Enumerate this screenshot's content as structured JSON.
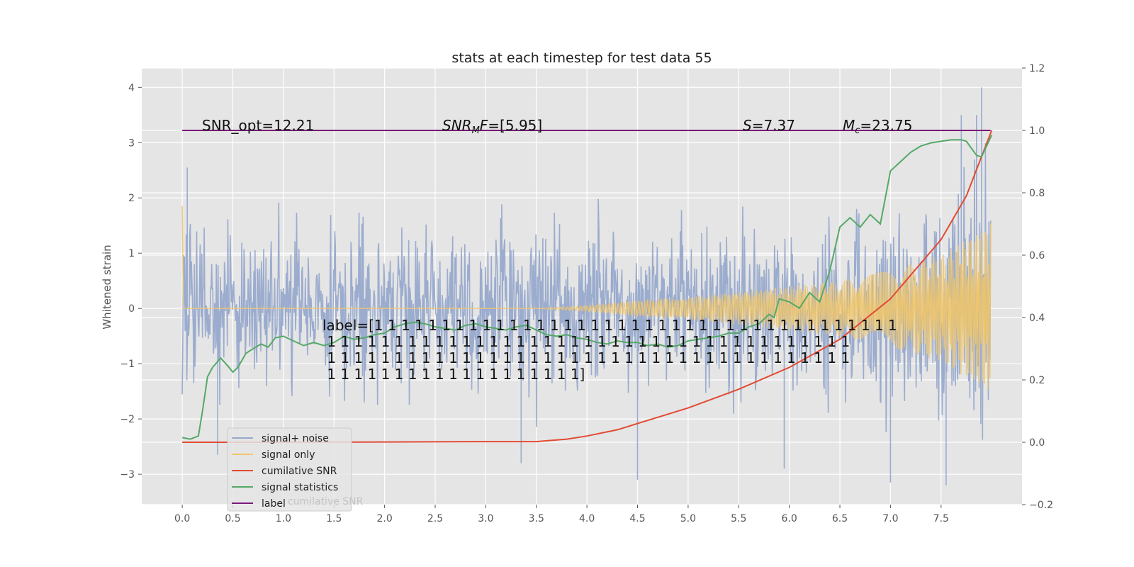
{
  "chart_data": {
    "type": "line",
    "title": "stats at each timestep for test data 55",
    "ylabel": "Whitened strain",
    "xlim": [
      -0.4,
      8.3
    ],
    "ylim_left": [
      -3.55,
      4.35
    ],
    "ylim_right": [
      -0.2,
      1.2
    ],
    "x_ticks": [
      "0.0",
      "0.5",
      "1.0",
      "1.5",
      "2.0",
      "2.5",
      "3.0",
      "3.5",
      "4.0",
      "4.5",
      "5.0",
      "5.5",
      "6.0",
      "6.5",
      "7.0",
      "7.5"
    ],
    "y_ticks_left": [
      "−3",
      "−2",
      "−1",
      "0",
      "1",
      "2",
      "3",
      "4"
    ],
    "y_ticks_right": [
      "−0.2",
      "0.0",
      "0.2",
      "0.4",
      "0.6",
      "0.8",
      "1.0",
      "1.2"
    ],
    "grid": true,
    "legend_position": "lower-left",
    "legend": [
      "signal+ noise",
      "signal only",
      "cumilative SNR",
      "signal statistics",
      "label"
    ],
    "legend_ghost_text": "cumilative SNR",
    "annotations": {
      "snr_opt": "SNR_opt=12.21",
      "snr_mf": "SNR",
      "snr_mf_sub": "M",
      "snr_mf_f": "F",
      "snr_mf_value": "=[5.95]",
      "s_sym": "S",
      "s_value": "=7.37",
      "mc_sym": "M",
      "mc_sub": "c",
      "mc_value": "=23.75"
    },
    "label_text": [
      "label=[1 1 1 1 1 1 1 1 1 1 1 1 1 1 1 1 1 1 1 1 1 1 1 1 1 1 1 1 1 1 1 1 1 1 1 1 1 1 1",
      " 1 1 1 1 1 1 1 1 1 1 1 1 1 1 1 1 1 1 1 1 1 1 1 1 1 1 1 1 1 1 1 1 1 1 1 1 1 1 1",
      " 1 1 1 1 1 1 1 1 1 1 1 1 1 1 1 1 1 1 1 1 1 1 1 1 1 1 1 1 1 1 1 1 1 1 1 1 1 1 1",
      " 1 1 1 1 1 1 1 1 1 1 1 1 1 1 1 1 1 1 1]"
    ],
    "series": [
      {
        "name": "signal+ noise",
        "axis": "left",
        "color": "#97A9CC",
        "x_range": [
          0.0,
          7.99
        ],
        "noise_envelope_start": 1.7,
        "noise_envelope_end": 1.9,
        "extremes_sample": [
          [
            0.05,
            2.55
          ],
          [
            0.35,
            -2.65
          ],
          [
            3.35,
            -2.8
          ],
          [
            4.5,
            -3.1
          ],
          [
            7.0,
            -3.15
          ],
          [
            7.55,
            -3.2
          ],
          [
            7.9,
            4.0
          ],
          [
            7.7,
            3.5
          ],
          [
            7.85,
            3.5
          ],
          [
            5.95,
            -2.9
          ]
        ]
      },
      {
        "name": "signal only",
        "axis": "left",
        "color": "#F0C56A",
        "x": [
          0.0,
          0.01,
          0.02,
          3.5,
          4.0,
          4.5,
          5.0,
          5.5,
          6.0,
          6.5,
          7.0,
          7.5,
          7.99
        ],
        "amplitude": [
          1.85,
          0.0,
          0.0,
          0.0,
          0.05,
          0.15,
          0.2,
          0.3,
          0.4,
          0.5,
          0.7,
          0.95,
          1.55
        ]
      },
      {
        "name": "cumilative SNR",
        "axis": "right",
        "color": "#E24A33",
        "x": [
          0.0,
          1.0,
          2.0,
          3.0,
          3.5,
          3.8,
          4.0,
          4.3,
          4.5,
          5.0,
          5.5,
          6.0,
          6.5,
          7.0,
          7.5,
          7.75,
          8.0
        ],
        "values": [
          0.0,
          0.0,
          0.001,
          0.002,
          0.002,
          0.01,
          0.02,
          0.04,
          0.06,
          0.11,
          0.17,
          0.24,
          0.33,
          0.46,
          0.65,
          0.79,
          1.0
        ]
      },
      {
        "name": "signal statistics",
        "axis": "right",
        "color": "#55A868",
        "x": [
          0.0,
          0.08,
          0.16,
          0.2,
          0.25,
          0.3,
          0.38,
          0.45,
          0.5,
          0.55,
          0.63,
          0.7,
          0.78,
          0.85,
          0.92,
          1.0,
          1.1,
          1.2,
          1.3,
          1.4,
          1.5,
          1.6,
          1.7,
          1.8,
          1.9,
          2.0,
          2.1,
          2.2,
          2.3,
          2.4,
          2.5,
          2.6,
          2.7,
          2.8,
          2.9,
          3.0,
          3.1,
          3.2,
          3.3,
          3.4,
          3.5,
          3.6,
          3.7,
          3.8,
          3.9,
          4.0,
          4.1,
          4.2,
          4.3,
          4.4,
          4.5,
          4.6,
          4.7,
          4.8,
          4.9,
          5.0,
          5.1,
          5.2,
          5.3,
          5.4,
          5.5,
          5.6,
          5.7,
          5.8,
          5.85,
          5.9,
          6.0,
          6.1,
          6.2,
          6.3,
          6.4,
          6.5,
          6.6,
          6.7,
          6.8,
          6.9,
          7.0,
          7.1,
          7.2,
          7.3,
          7.4,
          7.5,
          7.6,
          7.7,
          7.75,
          7.85,
          7.9,
          8.0
        ],
        "values": [
          0.015,
          0.01,
          0.02,
          0.1,
          0.21,
          0.24,
          0.27,
          0.245,
          0.225,
          0.24,
          0.285,
          0.3,
          0.315,
          0.305,
          0.335,
          0.34,
          0.325,
          0.31,
          0.32,
          0.31,
          0.32,
          0.34,
          0.33,
          0.335,
          0.345,
          0.35,
          0.37,
          0.38,
          0.385,
          0.38,
          0.37,
          0.365,
          0.36,
          0.375,
          0.38,
          0.37,
          0.365,
          0.36,
          0.37,
          0.375,
          0.36,
          0.345,
          0.34,
          0.345,
          0.335,
          0.33,
          0.32,
          0.315,
          0.325,
          0.32,
          0.32,
          0.31,
          0.315,
          0.305,
          0.31,
          0.325,
          0.33,
          0.335,
          0.34,
          0.35,
          0.35,
          0.37,
          0.38,
          0.41,
          0.4,
          0.46,
          0.45,
          0.43,
          0.48,
          0.45,
          0.55,
          0.69,
          0.72,
          0.69,
          0.73,
          0.7,
          0.87,
          0.9,
          0.93,
          0.95,
          0.96,
          0.965,
          0.97,
          0.97,
          0.965,
          0.92,
          0.915,
          0.985
        ],
        "note_points_over_8": []
      },
      {
        "name": "label",
        "axis": "right",
        "color": "#7A1A7A",
        "x": [
          0.0,
          7.99
        ],
        "values": [
          1.0,
          1.0
        ]
      }
    ]
  }
}
